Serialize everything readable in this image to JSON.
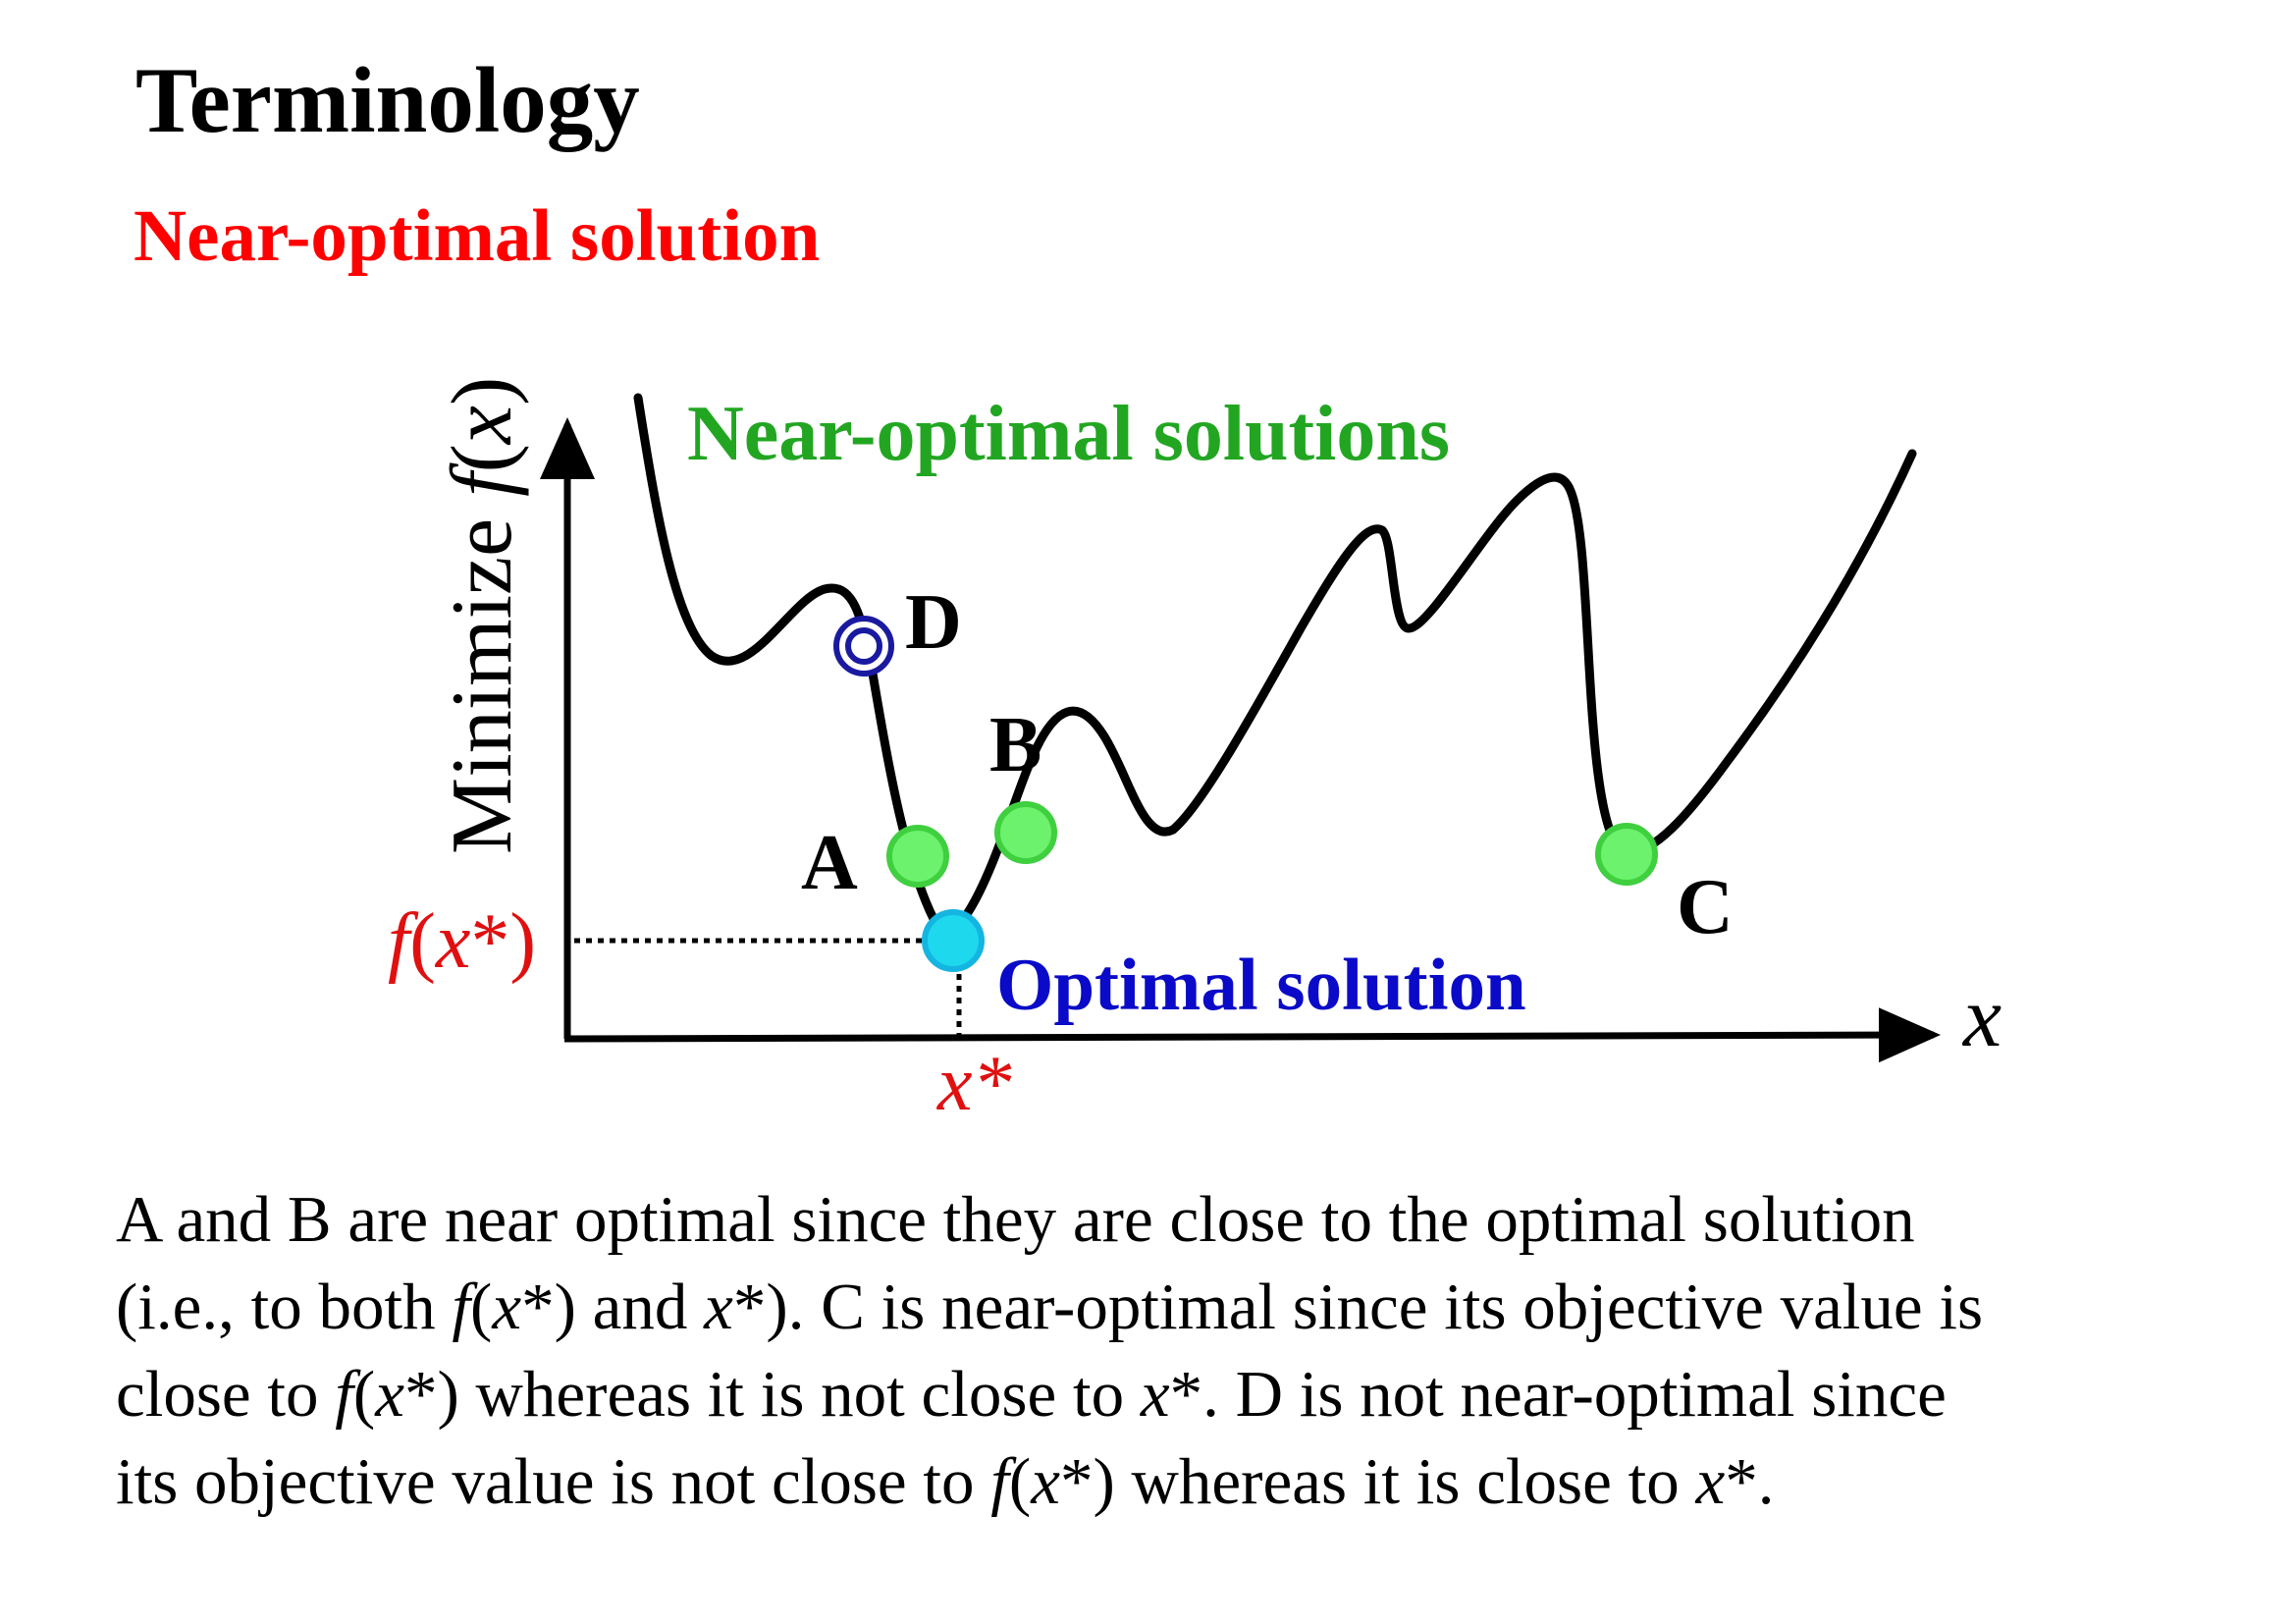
{
  "title": "Terminology",
  "subtitle": "Near-optimal solution",
  "diagram": {
    "y_axis_label_prefix": "Minimize ",
    "y_axis_label_f": "f",
    "y_axis_label_open": "(",
    "y_axis_label_x": "x",
    "y_axis_label_close": ")",
    "x_axis_label": "x",
    "near_optimal_label": "Near-optimal solutions",
    "optimal_label": "Optimal solution",
    "fx_star_f": "f",
    "fx_star_open": "(",
    "fx_star_x": "x",
    "fx_star_close": "*)",
    "x_star": "x*",
    "points": [
      {
        "label": "A",
        "kind": "near-optimal"
      },
      {
        "label": "B",
        "kind": "near-optimal"
      },
      {
        "label": "C",
        "kind": "near-optimal"
      },
      {
        "label": "D",
        "kind": "not-near-optimal"
      }
    ],
    "colors": {
      "green_text": "#22a622",
      "blue_text": "#0a0ac8",
      "red_text": "#e01010",
      "near_point": "#6cf26c",
      "optimal_point": "#1ed8ee",
      "d_point": "#1a1aa0"
    }
  },
  "paragraph": {
    "l1": "A and B are near optimal since they are close to the optimal solution",
    "l2a": "(i.e., to both ",
    "l2f": "f",
    "l2b": "(",
    "l2x1": "x",
    "l2c": "*) and ",
    "l2x2": "x",
    "l2d": "*). C is near-optimal since its objective value is",
    "l3a": "close to ",
    "l3f": "f",
    "l3b": "(",
    "l3x1": "x",
    "l3c": "*) whereas it is not close to ",
    "l3x2": "x",
    "l3d": "*. D is not near-optimal since",
    "l4a": "its objective value is not close to ",
    "l4f": "f",
    "l4b": "(",
    "l4x1": "x",
    "l4c": "*) whereas it is close to ",
    "l4x2": "x",
    "l4d": "*."
  }
}
